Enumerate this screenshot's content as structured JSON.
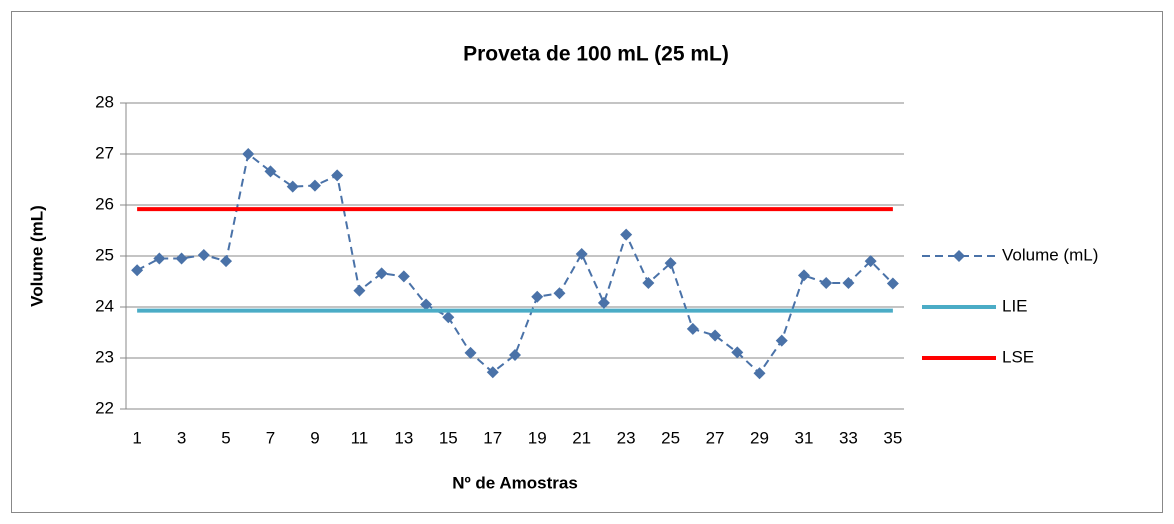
{
  "chart_data": {
    "type": "line",
    "title": "Proveta de 100 mL  (25 mL)",
    "x_label": "Nº de Amostras",
    "y_label": "Volume (mL)",
    "categories": [
      1,
      null,
      3,
      null,
      5,
      null,
      7,
      null,
      9,
      null,
      11,
      null,
      13,
      null,
      15,
      null,
      17,
      null,
      19,
      null,
      21,
      null,
      23,
      null,
      25,
      null,
      27,
      null,
      29,
      null,
      31,
      null,
      33,
      null,
      35
    ],
    "series": [
      {
        "name": "Volume (mL)",
        "color": "#4a72a8",
        "dashed": true,
        "marker": "diamond",
        "width": 2,
        "values": [
          24.72,
          24.95,
          24.95,
          25.02,
          24.9,
          27.0,
          26.66,
          26.36,
          26.38,
          26.58,
          24.32,
          24.66,
          24.6,
          24.05,
          23.8,
          23.1,
          22.72,
          23.06,
          24.2,
          24.27,
          25.04,
          24.08,
          25.42,
          24.47,
          24.86,
          23.57,
          23.44,
          23.11,
          22.7,
          23.34,
          24.62,
          24.47,
          24.47,
          24.9,
          24.46
        ]
      },
      {
        "name": "LIE",
        "color": "#4bacc6",
        "dashed": false,
        "marker": null,
        "width": 4,
        "values": [
          23.93,
          23.93,
          23.93,
          23.93,
          23.93,
          23.93,
          23.93,
          23.93,
          23.93,
          23.93,
          23.93,
          23.93,
          23.93,
          23.93,
          23.93,
          23.93,
          23.93,
          23.93,
          23.93,
          23.93,
          23.93,
          23.93,
          23.93,
          23.93,
          23.93,
          23.93,
          23.93,
          23.93,
          23.93,
          23.93,
          23.93,
          23.93,
          23.93,
          23.93,
          23.93
        ]
      },
      {
        "name": "LSE",
        "color": "#ff0000",
        "dashed": false,
        "marker": null,
        "width": 4,
        "values": [
          25.92,
          25.92,
          25.92,
          25.92,
          25.92,
          25.92,
          25.92,
          25.92,
          25.92,
          25.92,
          25.92,
          25.92,
          25.92,
          25.92,
          25.92,
          25.92,
          25.92,
          25.92,
          25.92,
          25.92,
          25.92,
          25.92,
          25.92,
          25.92,
          25.92,
          25.92,
          25.92,
          25.92,
          25.92,
          25.92,
          25.92,
          25.92,
          25.92,
          25.92,
          25.92
        ]
      }
    ],
    "ylim": [
      22,
      28
    ],
    "yticks": [
      22,
      23,
      24,
      25,
      26,
      27,
      28
    ],
    "grid": true,
    "legend": "right"
  }
}
